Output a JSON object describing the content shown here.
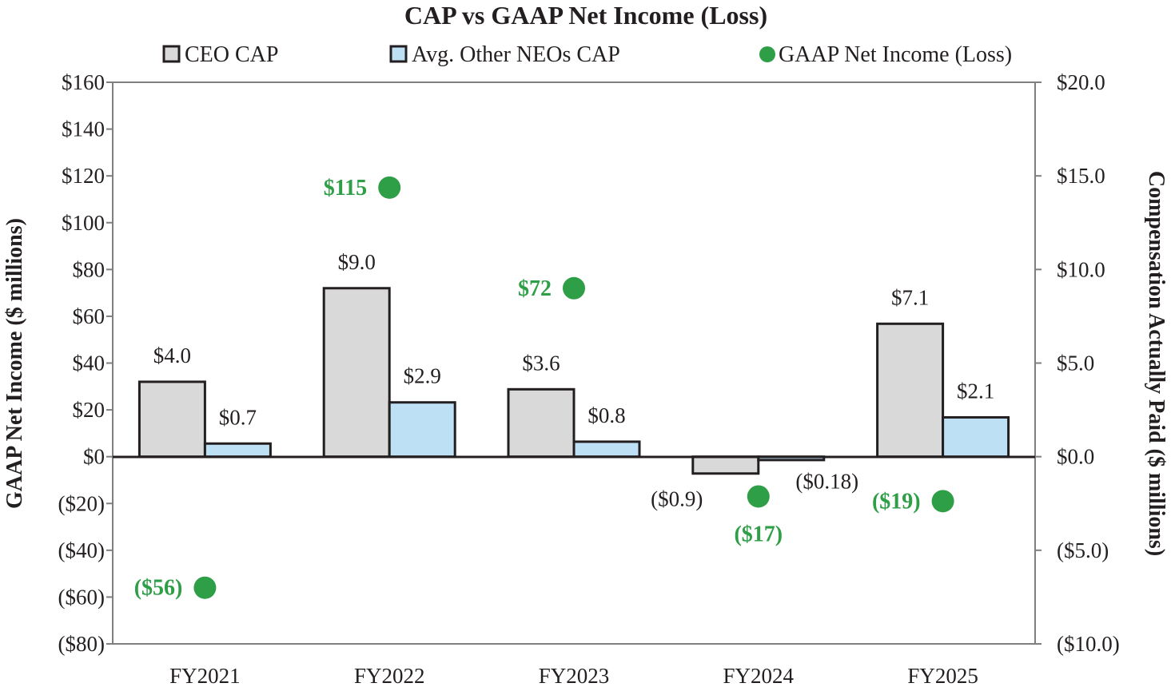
{
  "chart_data": {
    "type": "bar",
    "title": "CAP vs GAAP Net Income (Loss)",
    "categories": [
      "FY2021",
      "FY2022",
      "FY2023",
      "FY2024",
      "FY2025"
    ],
    "series": [
      {
        "name": "CEO CAP",
        "axis": "right",
        "color": "#d9d9d9",
        "values": [
          4.0,
          9.0,
          3.6,
          -0.9,
          7.1
        ],
        "labels": [
          "$4.0",
          "$9.0",
          "$3.6",
          "($0.9)",
          "$7.1"
        ]
      },
      {
        "name": "Avg. Other NEOs CAP",
        "axis": "right",
        "color": "#bde0f5",
        "values": [
          0.7,
          2.9,
          0.8,
          -0.18,
          2.1
        ],
        "labels": [
          "$0.7",
          "$2.9",
          "$0.8",
          "($0.18)",
          "$2.1"
        ]
      },
      {
        "name": "GAAP Net Income (Loss)",
        "axis": "left",
        "type": "scatter",
        "color": "#2e9e47",
        "values": [
          -56,
          115,
          72,
          -17,
          -19
        ],
        "labels": [
          "($56)",
          "$115",
          "$72",
          "($17)",
          "($19)"
        ]
      }
    ],
    "left_axis": {
      "label": "GAAP Net Income ($ millions)",
      "ylim": [
        -80,
        160
      ],
      "ticks": [
        160,
        140,
        120,
        100,
        80,
        60,
        40,
        20,
        0,
        -20,
        -40,
        -60,
        -80
      ],
      "tick_labels": [
        "$160",
        "$140",
        "$120",
        "$100",
        "$80",
        "$60",
        "$40",
        "$20",
        "$0",
        "($20)",
        "($40)",
        "($60)",
        "($80)"
      ]
    },
    "right_axis": {
      "label": "Compensation Actually Paid ($ millions)",
      "ylim": [
        -10,
        20
      ],
      "ticks": [
        20,
        15,
        10,
        5,
        0,
        -5,
        -10
      ],
      "tick_labels": [
        "$20.0",
        "$15.0",
        "$10.0",
        "$5.0",
        "$0.0",
        "($5.0)",
        "($10.0)"
      ],
      "negative_tick_color": "#e31b23"
    },
    "legend_position": "top",
    "grid": false
  }
}
